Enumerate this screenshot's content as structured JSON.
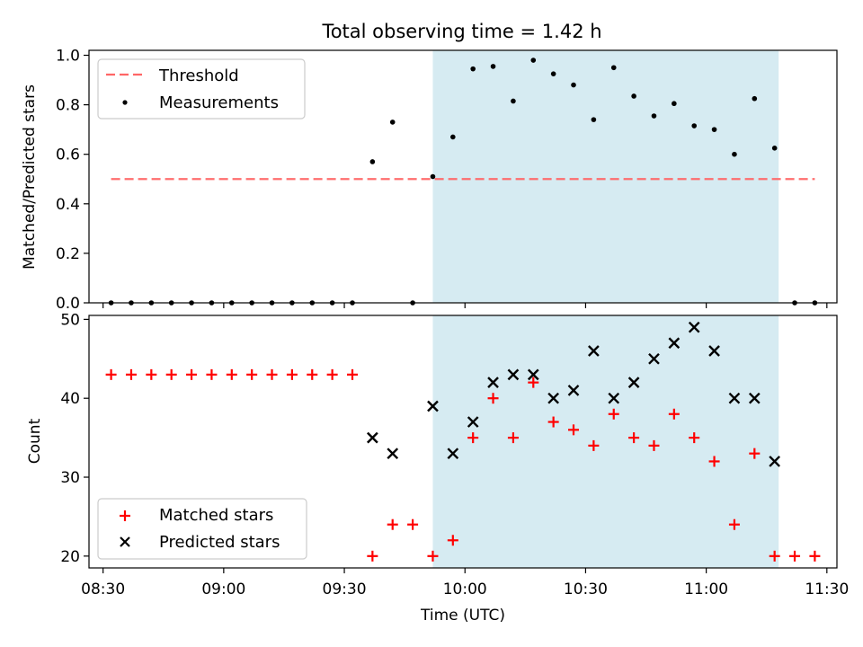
{
  "figure": {
    "title": "Total observing time = 1.42 h",
    "xlabel": "Time (UTC)",
    "x_ticks": [
      "08:30",
      "09:00",
      "09:30",
      "10:00",
      "10:30",
      "11:00",
      "11:30"
    ],
    "observing_window": {
      "start": "09:52",
      "end": "11:18",
      "color": "#add8e6"
    }
  },
  "chart_data": [
    {
      "type": "scatter",
      "panel": "top",
      "ylabel": "Matched/Predicted stars",
      "ylim": [
        0,
        1.02
      ],
      "y_ticks": [
        "0.0",
        "0.2",
        "0.4",
        "0.6",
        "0.8",
        "1.0"
      ],
      "legend": {
        "placement": "upper-left",
        "entries": [
          "Threshold",
          "Measurements"
        ]
      },
      "threshold": {
        "name": "Threshold",
        "value": 0.5,
        "x_start": "08:32",
        "x_end": "11:27",
        "color": "#ff6666",
        "style": "dashed"
      },
      "series": [
        {
          "name": "Measurements",
          "marker": "dot",
          "color": "#000000",
          "x": [
            "08:32",
            "08:37",
            "08:42",
            "08:47",
            "08:52",
            "08:57",
            "09:02",
            "09:07",
            "09:12",
            "09:17",
            "09:22",
            "09:27",
            "09:32",
            "09:37",
            "09:42",
            "09:47",
            "09:52",
            "09:57",
            "10:02",
            "10:07",
            "10:12",
            "10:17",
            "10:22",
            "10:27",
            "10:32",
            "10:37",
            "10:42",
            "10:47",
            "10:52",
            "10:57",
            "11:02",
            "11:07",
            "11:12",
            "11:17",
            "11:22",
            "11:27"
          ],
          "y": [
            0,
            0,
            0,
            0,
            0,
            0,
            0,
            0,
            0,
            0,
            0,
            0,
            0,
            0.57,
            0.73,
            0,
            0.51,
            0.67,
            0.945,
            0.955,
            0.815,
            0.98,
            0.925,
            0.88,
            0.74,
            0.95,
            0.835,
            0.755,
            0.805,
            0.715,
            0.7,
            0.6,
            0.825,
            0.625,
            0,
            0
          ]
        }
      ]
    },
    {
      "type": "scatter",
      "panel": "bottom",
      "ylabel": "Count",
      "ylim": [
        18.5,
        50.5
      ],
      "y_ticks": [
        "20",
        "30",
        "40",
        "50"
      ],
      "legend": {
        "placement": "lower-left",
        "entries": [
          "Matched stars",
          "Predicted stars"
        ]
      },
      "series": [
        {
          "name": "Matched stars",
          "marker": "plus",
          "color": "#ff0000",
          "x": [
            "08:32",
            "08:37",
            "08:42",
            "08:47",
            "08:52",
            "08:57",
            "09:02",
            "09:07",
            "09:12",
            "09:17",
            "09:22",
            "09:27",
            "09:32",
            "09:37",
            "09:42",
            "09:47",
            "09:52",
            "09:57",
            "10:02",
            "10:07",
            "10:12",
            "10:17",
            "10:22",
            "10:27",
            "10:32",
            "10:37",
            "10:42",
            "10:47",
            "10:52",
            "10:57",
            "11:02",
            "11:07",
            "11:12",
            "11:17",
            "11:22",
            "11:27"
          ],
          "y": [
            43,
            43,
            43,
            43,
            43,
            43,
            43,
            43,
            43,
            43,
            43,
            43,
            43,
            20,
            24,
            24,
            20,
            22,
            35,
            40,
            35,
            42,
            37,
            36,
            34,
            38,
            35,
            34,
            38,
            35,
            32,
            24,
            33,
            20,
            20,
            20
          ]
        },
        {
          "name": "Predicted stars",
          "marker": "x",
          "color": "#000000",
          "x": [
            "09:37",
            "09:42",
            "09:52",
            "09:57",
            "10:02",
            "10:07",
            "10:12",
            "10:17",
            "10:22",
            "10:27",
            "10:32",
            "10:37",
            "10:42",
            "10:47",
            "10:52",
            "10:57",
            "11:02",
            "11:07",
            "11:12",
            "11:17"
          ],
          "y": [
            35,
            33,
            39,
            33,
            37,
            42,
            43,
            43,
            40,
            41,
            46,
            40,
            42,
            45,
            47,
            49,
            46,
            40,
            40,
            32
          ]
        }
      ]
    }
  ]
}
